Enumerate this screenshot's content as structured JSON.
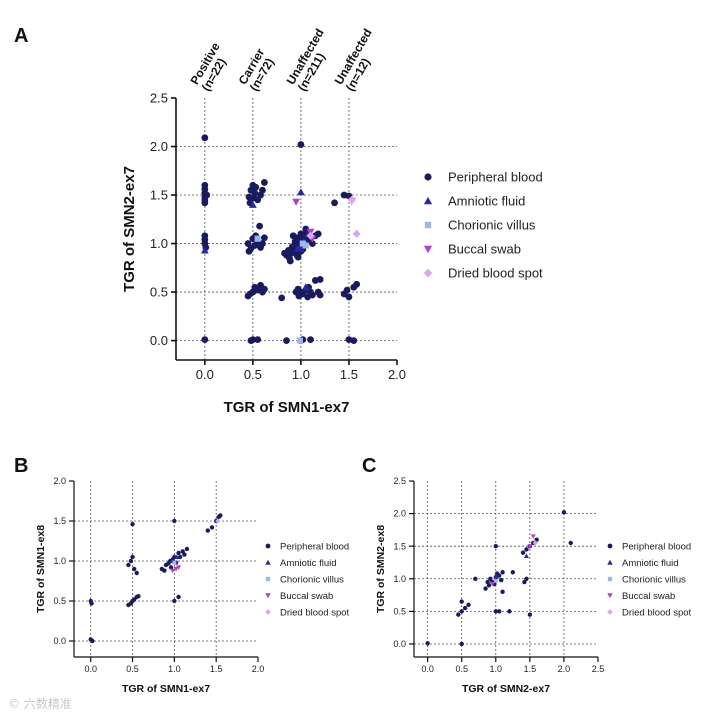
{
  "figure": {
    "panel_a": "A",
    "panel_b": "B",
    "panel_c": "C"
  },
  "watermark": {
    "text": "© 六数精准"
  },
  "legend_labels": [
    "Peripheral blood",
    "Amniotic fluid",
    "Chorionic villus",
    "Buccal swab",
    "Dried blood spot"
  ],
  "colors": {
    "peripheral_blood": "#1a1a5e",
    "amniotic_fluid": "#2929a8",
    "chorionic_villus": "#9fb6e8",
    "buccal_swab": "#b43fcf",
    "dried_blood_spot": "#d8a8ea",
    "grid": "#555555",
    "axis": "#111111"
  },
  "chart_data": [
    {
      "id": "A",
      "type": "scatter",
      "xlabel": "TGR of SMN1-ex7",
      "ylabel": "TGR of SMN2-ex7",
      "xlim": [
        -0.3,
        2.0
      ],
      "ylim": [
        -0.2,
        2.5
      ],
      "xticks": [
        "0.0",
        "0.5",
        "1.0",
        "1.5",
        "2.0"
      ],
      "yticks": [
        "0.0",
        "0.5",
        "1.0",
        "1.5",
        "2.0",
        "2.5"
      ],
      "xgrid": [
        0,
        0.5,
        1.0,
        1.5
      ],
      "ygrid": [
        0,
        0.5,
        1.0,
        1.5,
        2.0
      ],
      "groups": [
        {
          "label": "Positive\n(n=22)",
          "x": 0.0
        },
        {
          "label": "Carrier\n(n=72)",
          "x": 0.5
        },
        {
          "label": "Unaffected\n(n=211)",
          "x": 1.0
        },
        {
          "label": "Unaffected\n(n=12)",
          "x": 1.5
        }
      ],
      "series": [
        {
          "name": "Peripheral blood",
          "key": "peripheral_blood",
          "marker": "circle",
          "points": [
            [
              0,
              2.09
            ],
            [
              0,
              1.6
            ],
            [
              0,
              1.56
            ],
            [
              0,
              1.52
            ],
            [
              0,
              1.48
            ],
            [
              0,
              1.45
            ],
            [
              0,
              1.42
            ],
            [
              0.02,
              1.5
            ],
            [
              0,
              1.08
            ],
            [
              0,
              1.04
            ],
            [
              0,
              1.0
            ],
            [
              0.01,
              0.96
            ],
            [
              0,
              0.01
            ],
            [
              0.48,
              1.55
            ],
            [
              0.5,
              1.6
            ],
            [
              0.52,
              1.52
            ],
            [
              0.46,
              1.48
            ],
            [
              0.55,
              1.45
            ],
            [
              0.58,
              1.5
            ],
            [
              0.6,
              1.55
            ],
            [
              0.62,
              1.63
            ],
            [
              0.47,
              1.42
            ],
            [
              0.53,
              1.58
            ],
            [
              0.51,
              1.47
            ],
            [
              0.45,
              1.0
            ],
            [
              0.48,
              0.95
            ],
            [
              0.5,
              1.05
            ],
            [
              0.52,
              0.98
            ],
            [
              0.55,
              1.02
            ],
            [
              0.46,
              0.92
            ],
            [
              0.53,
              1.08
            ],
            [
              0.58,
              0.96
            ],
            [
              0.6,
              1.0
            ],
            [
              0.62,
              1.06
            ],
            [
              0.57,
              1.18
            ],
            [
              0.5,
              0.5
            ],
            [
              0.47,
              0.48
            ],
            [
              0.52,
              0.55
            ],
            [
              0.55,
              0.52
            ],
            [
              0.6,
              0.5
            ],
            [
              0.45,
              0.46
            ],
            [
              0.58,
              0.57
            ],
            [
              0.62,
              0.53
            ],
            [
              0.5,
              0.01
            ],
            [
              0.55,
              0.01
            ],
            [
              0.48,
              0.0
            ],
            [
              0.85,
              0.88
            ],
            [
              0.9,
              0.9
            ],
            [
              0.92,
              0.95
            ],
            [
              0.95,
              0.97
            ],
            [
              0.97,
              1.0
            ],
            [
              1.0,
              1.02
            ],
            [
              1.02,
              1.05
            ],
            [
              1.04,
              1.0
            ],
            [
              1.05,
              1.07
            ],
            [
              1.08,
              1.1
            ],
            [
              1.1,
              1.05
            ],
            [
              0.88,
              0.85
            ],
            [
              0.93,
              0.92
            ],
            [
              0.96,
              0.88
            ],
            [
              0.99,
              0.95
            ],
            [
              1.01,
              0.98
            ],
            [
              1.03,
              1.08
            ],
            [
              0.94,
              1.02
            ],
            [
              0.98,
              1.04
            ],
            [
              1.06,
              1.12
            ],
            [
              0.91,
              0.97
            ],
            [
              1.0,
              0.92
            ],
            [
              0.87,
              0.93
            ],
            [
              0.95,
              1.06
            ],
            [
              1.12,
              1.0
            ],
            [
              0.89,
              0.82
            ],
            [
              1.15,
              1.08
            ],
            [
              1.0,
              1.1
            ],
            [
              0.97,
              0.86
            ],
            [
              1.02,
              0.94
            ],
            [
              1.05,
              1.15
            ],
            [
              1.07,
              1.03
            ],
            [
              0.92,
              1.08
            ],
            [
              0.83,
              0.9
            ],
            [
              1.18,
              1.1
            ],
            [
              0.8,
              0.44
            ],
            [
              0.95,
              0.5
            ],
            [
              1.0,
              0.5
            ],
            [
              1.02,
              0.48
            ],
            [
              1.05,
              0.52
            ],
            [
              1.08,
              0.55
            ],
            [
              1.1,
              0.5
            ],
            [
              1.12,
              0.47
            ],
            [
              0.98,
              0.46
            ],
            [
              0.97,
              0.53
            ],
            [
              1.07,
              0.45
            ],
            [
              1.15,
              0.62
            ],
            [
              1.2,
              0.63
            ],
            [
              1.18,
              0.5
            ],
            [
              1.2,
              0.47
            ],
            [
              1.0,
              2.02
            ],
            [
              0.85,
              0.0
            ],
            [
              1.0,
              0.0
            ],
            [
              1.02,
              0.01
            ],
            [
              1.1,
              0.01
            ],
            [
              1.35,
              1.42
            ],
            [
              1.5,
              1.49
            ],
            [
              1.45,
              1.5
            ],
            [
              1.48,
              0.52
            ],
            [
              1.55,
              0.55
            ],
            [
              1.58,
              0.58
            ],
            [
              1.45,
              0.48
            ],
            [
              1.5,
              0.45
            ],
            [
              1.5,
              0.01
            ],
            [
              1.55,
              0.0
            ]
          ]
        },
        {
          "name": "Amniotic fluid",
          "key": "amniotic_fluid",
          "marker": "triangle-up",
          "points": [
            [
              0.0,
              0.93
            ],
            [
              0.97,
              0.95
            ],
            [
              1.0,
              1.53
            ],
            [
              1.03,
              1.02
            ],
            [
              1.05,
              0.55
            ],
            [
              1.0,
              0.95
            ],
            [
              0.5,
              1.4
            ],
            [
              1.08,
              1.1
            ]
          ]
        },
        {
          "name": "Chorionic villus",
          "key": "chorionic_villus",
          "marker": "square",
          "points": [
            [
              0.99,
              0.0
            ],
            [
              1.02,
              1.0
            ],
            [
              1.05,
              0.98
            ],
            [
              0.55,
              1.05
            ]
          ]
        },
        {
          "name": "Buccal swab",
          "key": "buccal_swab",
          "marker": "triangle-down",
          "points": [
            [
              0.95,
              1.43
            ],
            [
              1.53,
              1.44
            ],
            [
              1.1,
              1.12
            ],
            [
              1.12,
              1.05
            ]
          ]
        },
        {
          "name": "Dried blood spot",
          "key": "dried_blood_spot",
          "marker": "diamond",
          "points": [
            [
              1.58,
              1.1
            ],
            [
              1.53,
              1.45
            ],
            [
              1.1,
              1.08
            ]
          ]
        }
      ]
    },
    {
      "id": "B",
      "type": "scatter",
      "xlabel": "TGR of SMN1-ex7",
      "ylabel": "TGR of SMN1-ex8",
      "xlim": [
        -0.2,
        2.0
      ],
      "ylim": [
        -0.2,
        2.0
      ],
      "xticks": [
        "0.0",
        "0.5",
        "1.0",
        "1.5",
        "2.0"
      ],
      "yticks": [
        "0.0",
        "0.5",
        "1.0",
        "1.5",
        "2.0"
      ],
      "xgrid": [
        0,
        0.5,
        1.0,
        1.5
      ],
      "ygrid": [
        0,
        0.5,
        1.0,
        1.5
      ],
      "series": [
        {
          "name": "Peripheral blood",
          "key": "peripheral_blood",
          "marker": "circle",
          "points": [
            [
              0,
              0.5
            ],
            [
              0.01,
              0.47
            ],
            [
              0,
              0.02
            ],
            [
              0.02,
              0.0
            ],
            [
              0.45,
              0.45
            ],
            [
              0.48,
              0.47
            ],
            [
              0.5,
              0.5
            ],
            [
              0.52,
              0.52
            ],
            [
              0.55,
              0.55
            ],
            [
              0.57,
              0.56
            ],
            [
              0.5,
              1.46
            ],
            [
              0.45,
              0.95
            ],
            [
              0.48,
              1.0
            ],
            [
              0.52,
              0.9
            ],
            [
              0.55,
              0.85
            ],
            [
              0.5,
              1.05
            ],
            [
              0.85,
              0.9
            ],
            [
              0.9,
              0.95
            ],
            [
              0.95,
              1.0
            ],
            [
              1.0,
              1.05
            ],
            [
              1.05,
              1.1
            ],
            [
              1.1,
              1.12
            ],
            [
              1.15,
              1.15
            ],
            [
              0.88,
              0.88
            ],
            [
              0.93,
              0.97
            ],
            [
              0.98,
              1.02
            ],
            [
              1.02,
              0.98
            ],
            [
              1.07,
              1.05
            ],
            [
              1.12,
              1.08
            ],
            [
              0.96,
              0.92
            ],
            [
              1.0,
              1.5
            ],
            [
              1.05,
              0.55
            ],
            [
              1.0,
              0.5
            ],
            [
              1.4,
              1.38
            ],
            [
              1.45,
              1.42
            ],
            [
              1.5,
              1.5
            ],
            [
              1.53,
              1.55
            ],
            [
              1.55,
              1.57
            ]
          ]
        },
        {
          "name": "Amniotic fluid",
          "key": "amniotic_fluid",
          "marker": "triangle-up",
          "points": [
            [
              0.97,
              1.0
            ],
            [
              1.03,
              1.05
            ]
          ]
        },
        {
          "name": "Chorionic villus",
          "key": "chorionic_villus",
          "marker": "square",
          "points": [
            [
              1.0,
              0.98
            ]
          ]
        },
        {
          "name": "Buccal swab",
          "key": "buccal_swab",
          "marker": "triangle-down",
          "points": [
            [
              0.98,
              0.88
            ],
            [
              1.02,
              0.9
            ],
            [
              1.05,
              0.92
            ]
          ]
        },
        {
          "name": "Dried blood spot",
          "key": "dried_blood_spot",
          "marker": "diamond",
          "points": [
            [
              1.52,
              1.5
            ]
          ]
        }
      ]
    },
    {
      "id": "C",
      "type": "scatter",
      "xlabel": "TGR of SMN2-ex7",
      "ylabel": "TGR of SMN2-ex8",
      "xlim": [
        -0.2,
        2.5
      ],
      "ylim": [
        -0.2,
        2.5
      ],
      "xticks": [
        "0.0",
        "0.5",
        "1.0",
        "1.5",
        "2.0",
        "2.5"
      ],
      "yticks": [
        "0.0",
        "0.5",
        "1.0",
        "1.5",
        "2.0",
        "2.5"
      ],
      "xgrid": [
        0,
        0.5,
        1.0,
        1.5,
        2.0
      ],
      "ygrid": [
        0,
        0.5,
        1.0,
        1.5,
        2.0
      ],
      "series": [
        {
          "name": "Peripheral blood",
          "key": "peripheral_blood",
          "marker": "circle",
          "points": [
            [
              0,
              0.01
            ],
            [
              0.5,
              0.0
            ],
            [
              0.45,
              0.45
            ],
            [
              0.5,
              0.5
            ],
            [
              0.55,
              0.55
            ],
            [
              0.6,
              0.6
            ],
            [
              0.5,
              0.65
            ],
            [
              0.85,
              0.85
            ],
            [
              0.9,
              0.9
            ],
            [
              0.95,
              0.95
            ],
            [
              1.0,
              1.0
            ],
            [
              1.05,
              1.05
            ],
            [
              1.1,
              1.1
            ],
            [
              0.92,
              1.0
            ],
            [
              0.98,
              0.92
            ],
            [
              1.02,
              1.08
            ],
            [
              1.08,
              0.98
            ],
            [
              0.88,
              0.95
            ],
            [
              1.1,
              0.8
            ],
            [
              1.0,
              0.5
            ],
            [
              1.05,
              0.5
            ],
            [
              1.2,
              0.5
            ],
            [
              1.25,
              1.1
            ],
            [
              1.4,
              1.4
            ],
            [
              1.45,
              1.45
            ],
            [
              1.5,
              1.5
            ],
            [
              1.55,
              1.55
            ],
            [
              1.6,
              1.6
            ],
            [
              1.42,
              0.95
            ],
            [
              1.45,
              1.0
            ],
            [
              1.5,
              0.45
            ],
            [
              1.0,
              1.5
            ],
            [
              2.0,
              2.02
            ],
            [
              2.1,
              1.55
            ],
            [
              0.7,
              1.0
            ]
          ]
        },
        {
          "name": "Amniotic fluid",
          "key": "amniotic_fluid",
          "marker": "triangle-up",
          "points": [
            [
              1.0,
              1.05
            ],
            [
              1.45,
              1.35
            ]
          ]
        },
        {
          "name": "Chorionic villus",
          "key": "chorionic_villus",
          "marker": "square",
          "points": [
            [
              1.0,
              0.97
            ]
          ]
        },
        {
          "name": "Buccal swab",
          "key": "buccal_swab",
          "marker": "triangle-down",
          "points": [
            [
              0.95,
              0.92
            ],
            [
              1.55,
              1.65
            ],
            [
              1.5,
              1.5
            ]
          ]
        },
        {
          "name": "Dried blood spot",
          "key": "dried_blood_spot",
          "marker": "diamond",
          "points": [
            [
              1.58,
              1.55
            ]
          ]
        }
      ]
    }
  ]
}
